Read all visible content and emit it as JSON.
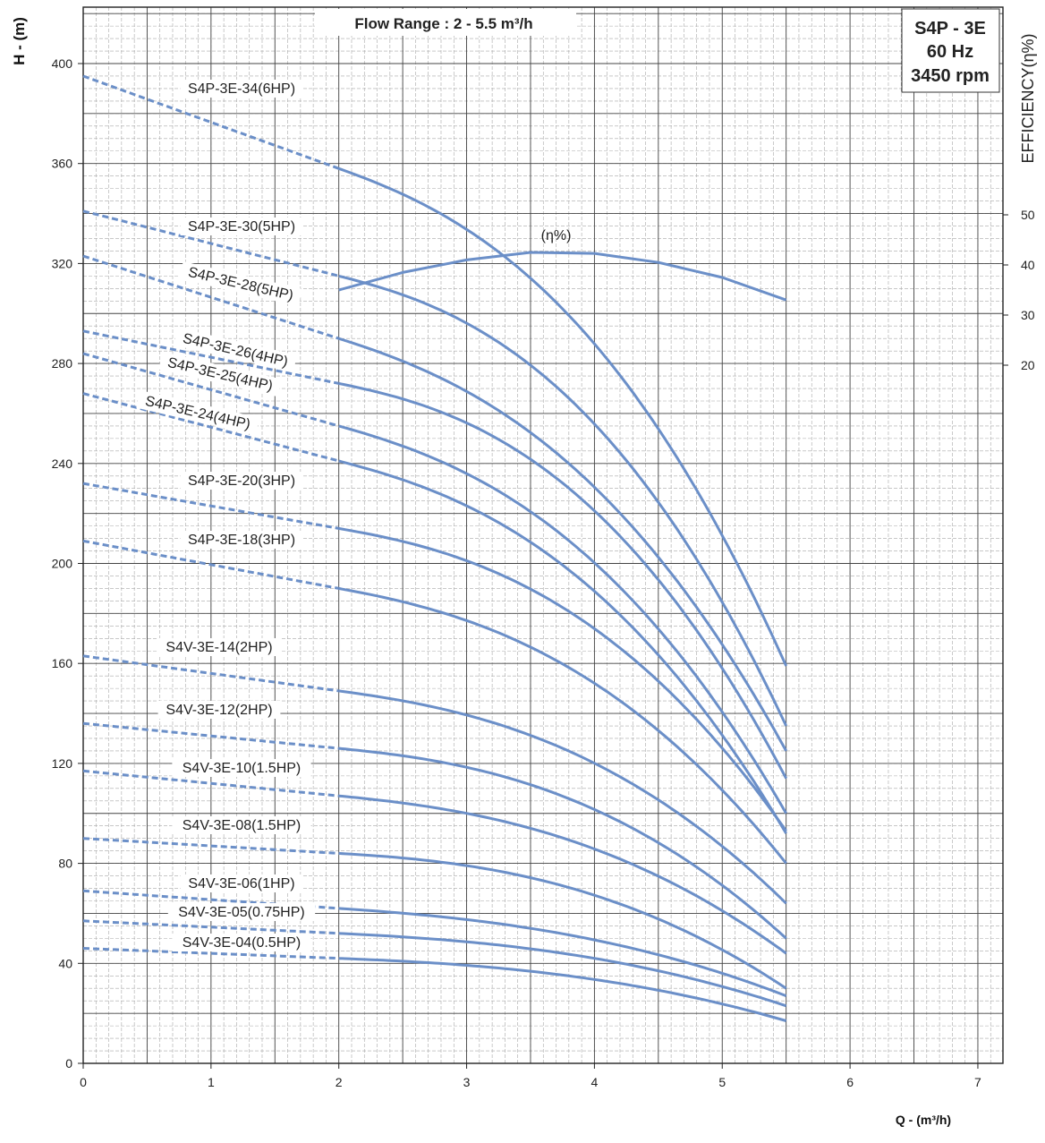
{
  "chart_data": {
    "type": "line",
    "title": "Flow Range : 2 - 5.5 m³/h",
    "info_box": [
      "S4P - 3E",
      "60 Hz",
      "3450 rpm"
    ],
    "xlabel": "Q - (m³/h)",
    "ylabel": "H - (m)",
    "y2label": "EFFICIENCY(η%)",
    "xlim": [
      0,
      7.2
    ],
    "ylim": [
      0,
      425
    ],
    "y2lim_shown": [
      20,
      50
    ],
    "x_ticks": [
      "0",
      "1",
      "2",
      "3",
      "4",
      "5",
      "6",
      "7"
    ],
    "y_ticks": [
      "0",
      "40",
      "80",
      "120",
      "160",
      "200",
      "240",
      "280",
      "320",
      "360",
      "400"
    ],
    "y2_ticks": [
      "20",
      "30",
      "40",
      "50"
    ],
    "grid": true,
    "operating_range": [
      2,
      5.5
    ],
    "efficiency": {
      "name": "(η%)",
      "x": [
        2,
        2.5,
        3,
        3.5,
        4,
        4.5,
        5,
        5.5
      ],
      "values": [
        35,
        38.5,
        41,
        42.5,
        42.3,
        40.5,
        37.5,
        33
      ]
    },
    "series": [
      {
        "name": "S4P-3E-34(6HP)",
        "h0": 395,
        "h2": 358,
        "h5_5": 159
      },
      {
        "name": "S4P-3E-30(5HP)",
        "h0": 341,
        "h2": 315,
        "h5_5": 135
      },
      {
        "name": "S4P-3E-28(5HP)",
        "h0": 323,
        "h2": 290,
        "h5_5": 125
      },
      {
        "name": "S4P-3E-26(4HP)",
        "h0": 293,
        "h2": 272,
        "h5_5": 114
      },
      {
        "name": "S4P-3E-25(4HP)",
        "h0": 284,
        "h2": 255,
        "h5_5": 100
      },
      {
        "name": "S4P-3E-24(4HP)",
        "h0": 268,
        "h2": 241,
        "h5_5": 92
      },
      {
        "name": "S4P-3E-20(3HP)",
        "h0": 232,
        "h2": 214,
        "h5_5": 93
      },
      {
        "name": "S4P-3E-18(3HP)",
        "h0": 209,
        "h2": 190,
        "h5_5": 80
      },
      {
        "name": "S4V-3E-14(2HP)",
        "h0": 163,
        "h2": 149,
        "h5_5": 64
      },
      {
        "name": "S4V-3E-12(2HP)",
        "h0": 136,
        "h2": 126,
        "h5_5": 50
      },
      {
        "name": "S4V-3E-10(1.5HP)",
        "h0": 117,
        "h2": 107,
        "h5_5": 44
      },
      {
        "name": "S4V-3E-08(1.5HP)",
        "h0": 90,
        "h2": 84,
        "h5_5": 30
      },
      {
        "name": "S4V-3E-06(1HP)",
        "h0": 69,
        "h2": 62,
        "h5_5": 27
      },
      {
        "name": "S4V-3E-05(0.75HP)",
        "h0": 57,
        "h2": 52,
        "h5_5": 23
      },
      {
        "name": "S4V-3E-04(0.5HP)",
        "h0": 46,
        "h2": 42,
        "h5_5": 17
      }
    ],
    "colors": {
      "curve": "#6b8fc8",
      "grid_major": "#444444",
      "grid_minor": "#a8a8a8",
      "text": "#222222"
    }
  }
}
